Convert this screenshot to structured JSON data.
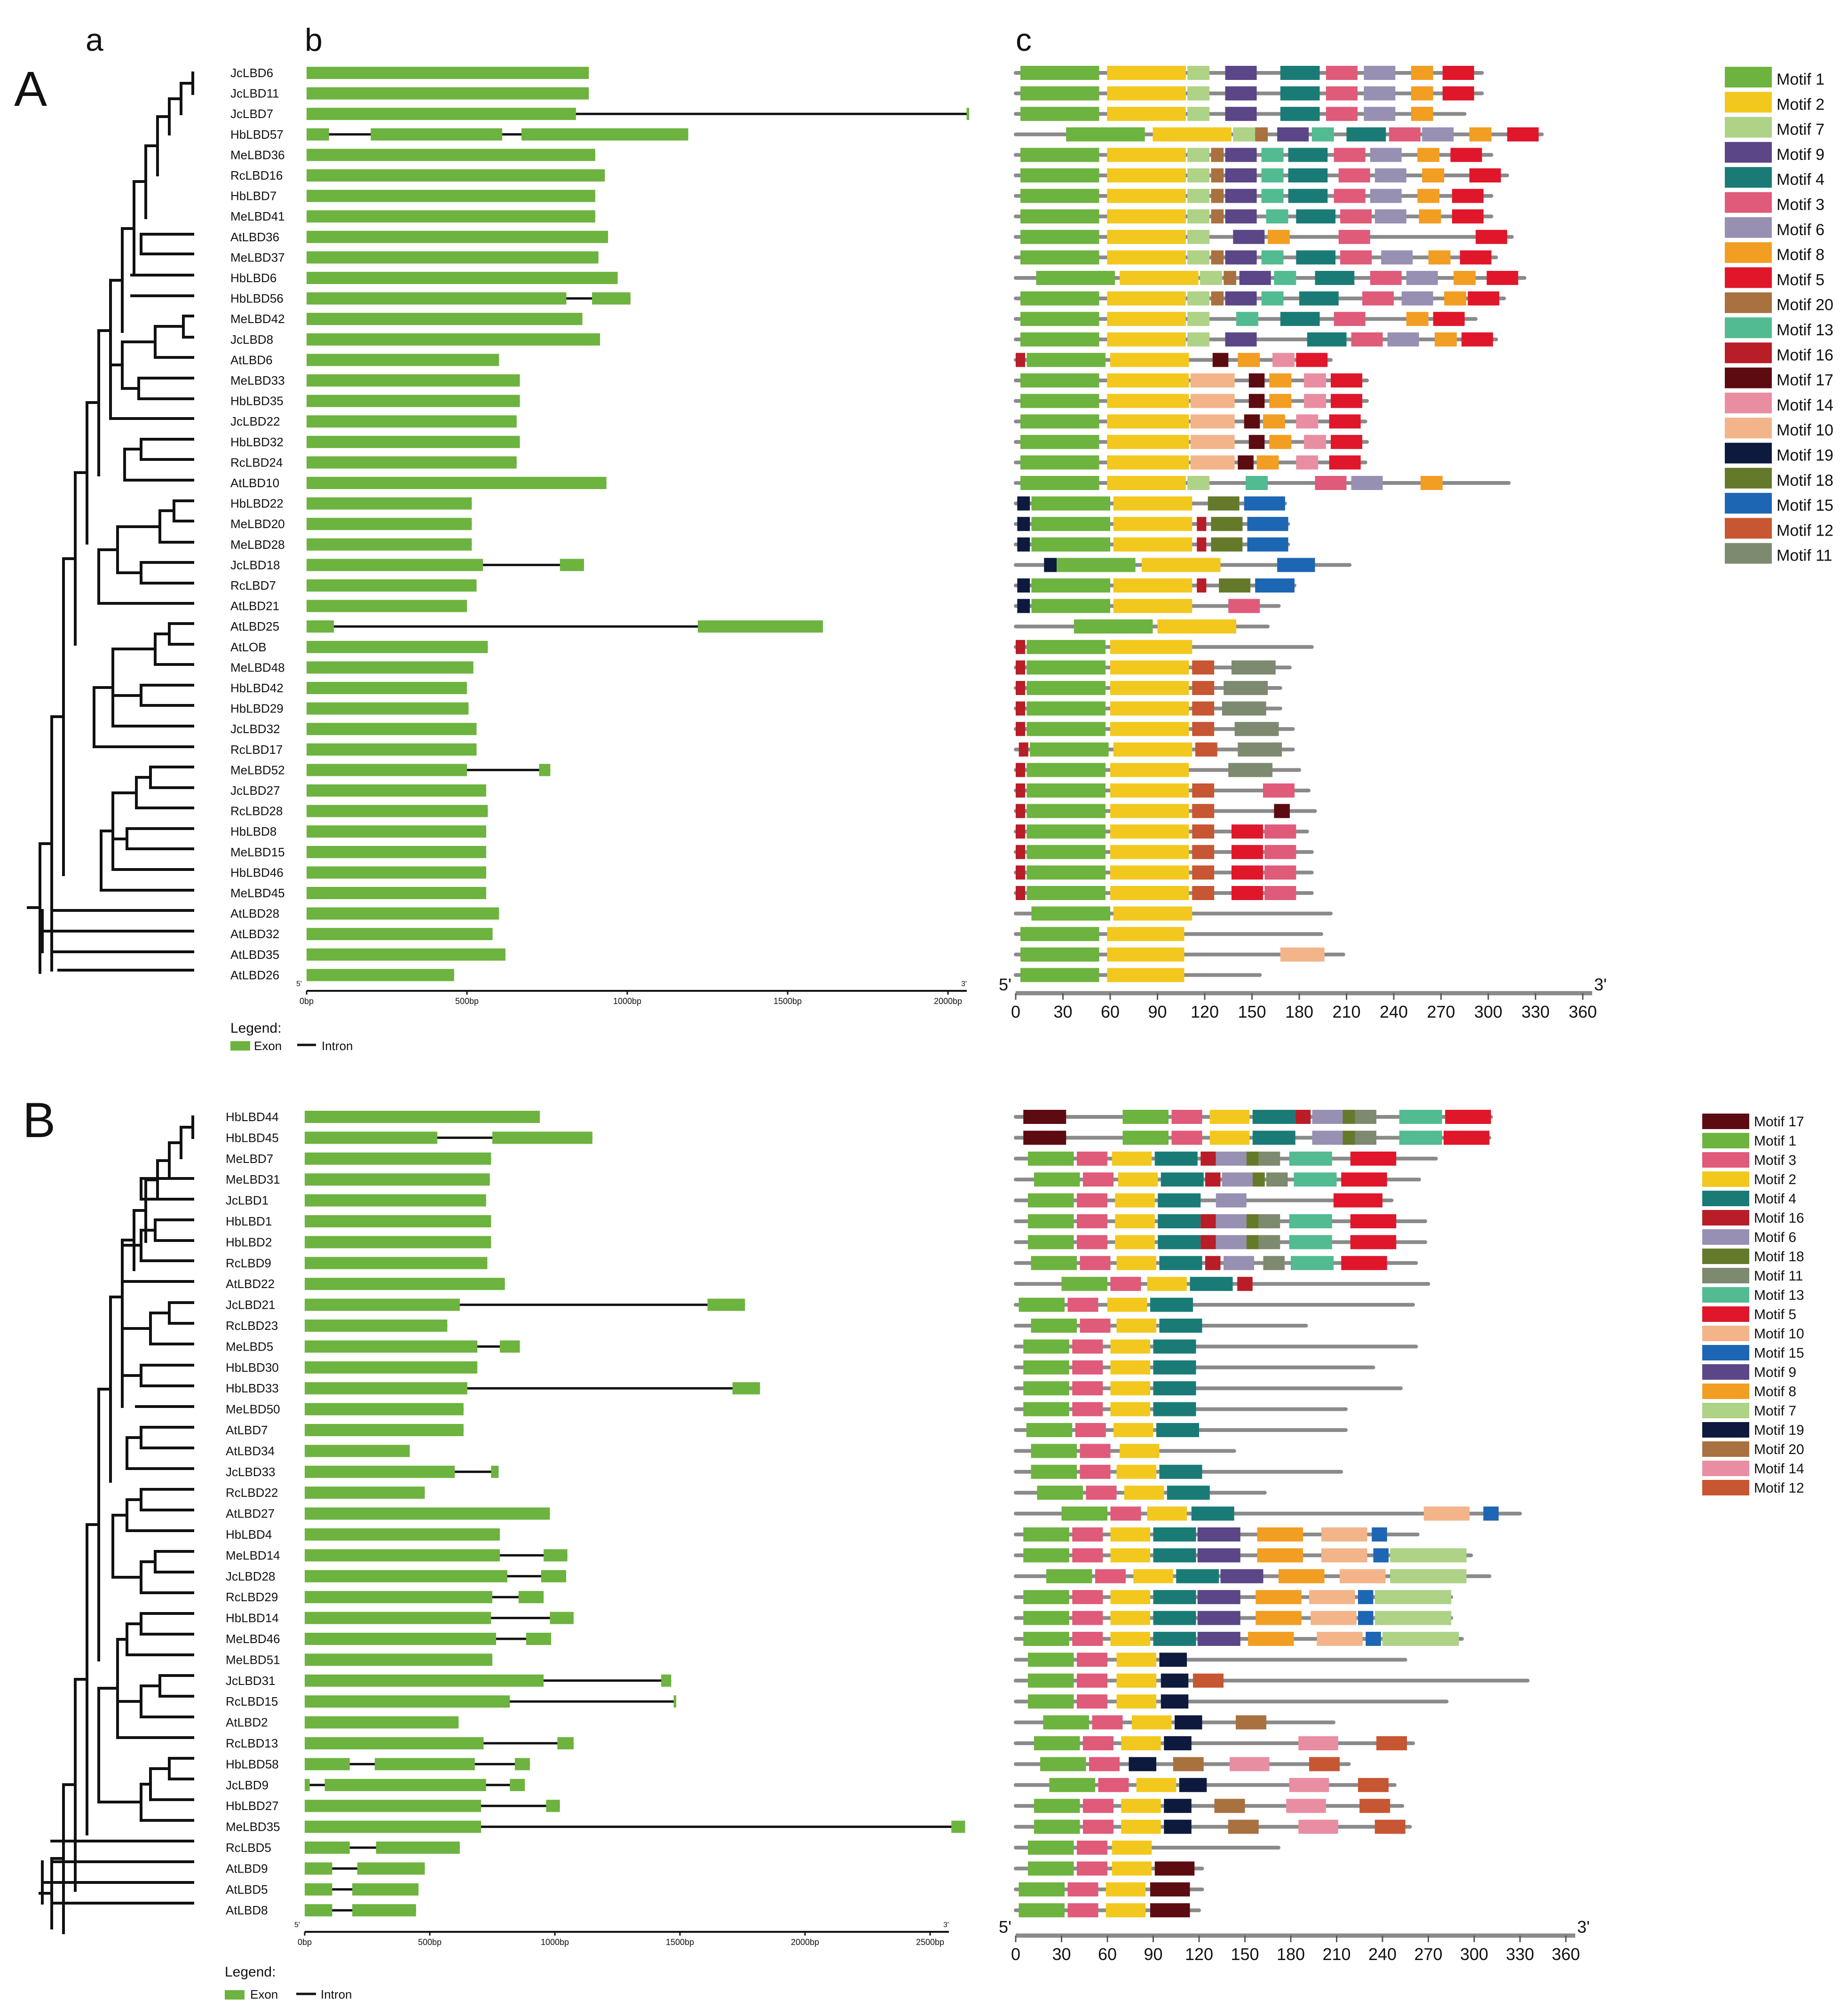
{
  "colors": {
    "exon": "#6db33f",
    "intron": "#111111",
    "line": "#8a8a8a",
    "tree": "#111111",
    "m1": "#6db33f",
    "m2": "#f2c81e",
    "m3": "#e05a7a",
    "m4": "#1a7b76",
    "m5": "#e0162b",
    "m6": "#9890b3",
    "m7": "#aed286",
    "m8": "#f29e22",
    "m9": "#5b4687",
    "m10": "#f3b48a",
    "m11": "#7d8a70",
    "m12": "#c75632",
    "m13": "#52bb91",
    "m14": "#e98ea2",
    "m15": "#1d66b3",
    "m16": "#b91d27",
    "m17": "#5c0b11",
    "m18": "#647a2a",
    "m19": "#0d1a3e",
    "m20": "#a9713f"
  },
  "panels": {
    "A": {
      "label": "A",
      "sub_a": "a",
      "sub_b": "b",
      "sub_c": "c",
      "genes": [
        "JcLBD6",
        "JcLBD11",
        "JcLBD7",
        "HbLBD57",
        "MeLBD36",
        "RcLBD16",
        "HbLBD7",
        "MeLBD41",
        "AtLBD36",
        "MeLBD37",
        "HbLBD6",
        "HbLBD56",
        "MeLBD42",
        "JcLBD8",
        "AtLBD6",
        "MeLBD33",
        "HbLBD35",
        "JcLBD22",
        "HbLBD32",
        "RcLBD24",
        "AtLBD10",
        "HbLBD22",
        "MeLBD20",
        "MeLBD28",
        "JcLBD18",
        "RcLBD7",
        "AtLBD21",
        "AtLBD25",
        "AtLOB",
        "MeLBD48",
        "HbLBD42",
        "HbLBD29",
        "JcLBD32",
        "RcLBD17",
        "MeLBD52",
        "JcLBD27",
        "RcLBD28",
        "HbLBD8",
        "MeLBD15",
        "HbLBD46",
        "MeLBD45",
        "AtLBD28",
        "AtLBD32",
        "AtLBD35",
        "AtLBD26"
      ],
      "gene_axis": {
        "ticks": [
          "0bp",
          "500bp",
          "1000bp",
          "1500bp",
          "2000bp"
        ],
        "end5": "5'",
        "end3": "3'"
      },
      "motif_axis": {
        "ticks": [
          "0",
          "30",
          "60",
          "90",
          "120",
          "150",
          "180",
          "210",
          "240",
          "270",
          "300",
          "330",
          "360"
        ],
        "end5": "5'",
        "end3": "3'"
      },
      "legend_title": "Legend:",
      "legend_exon": "Exon",
      "legend_intron": "Intron",
      "motif_legend": [
        {
          "label": "Motif 1",
          "key": "m1"
        },
        {
          "label": "Motif 2",
          "key": "m2"
        },
        {
          "label": "Motif 7",
          "key": "m7"
        },
        {
          "label": "Motif 9",
          "key": "m9"
        },
        {
          "label": "Motif 4",
          "key": "m4"
        },
        {
          "label": "Motif 3",
          "key": "m3"
        },
        {
          "label": "Motif 6",
          "key": "m6"
        },
        {
          "label": "Motif 8",
          "key": "m8"
        },
        {
          "label": "Motif 5",
          "key": "m5"
        },
        {
          "label": "Motif 20",
          "key": "m20"
        },
        {
          "label": "Motif 13",
          "key": "m13"
        },
        {
          "label": "Motif 16",
          "key": "m16"
        },
        {
          "label": "Motif 17",
          "key": "m17"
        },
        {
          "label": "Motif 14",
          "key": "m14"
        },
        {
          "label": "Motif 10",
          "key": "m10"
        },
        {
          "label": "Motif 19",
          "key": "m19"
        },
        {
          "label": "Motif 18",
          "key": "m18"
        },
        {
          "label": "Motif 15",
          "key": "m15"
        },
        {
          "label": "Motif 12",
          "key": "m12"
        },
        {
          "label": "Motif 11",
          "key": "m11"
        }
      ]
    },
    "B": {
      "label": "B",
      "genes": [
        "HbLBD44",
        "HbLBD45",
        "MeLBD7",
        "MeLBD31",
        "JcLBD1",
        "HbLBD1",
        "HbLBD2",
        "RcLBD9",
        "AtLBD22",
        "JcLBD21",
        "RcLBD23",
        "MeLBD5",
        "HbLBD30",
        "HbLBD33",
        "MeLBD50",
        "AtLBD7",
        "AtLBD34",
        "JcLBD33",
        "RcLBD22",
        "AtLBD27",
        "HbLBD4",
        "MeLBD14",
        "JcLBD28",
        "RcLBD29",
        "HbLBD14",
        "MeLBD46",
        "MeLBD51",
        "JcLBD31",
        "RcLBD15",
        "AtLBD2",
        "RcLBD13",
        "HbLBD58",
        "JcLBD9",
        "HbLBD27",
        "MeLBD35",
        "RcLBD5",
        "AtLBD9",
        "AtLBD5",
        "AtLBD8"
      ],
      "gene_axis": {
        "ticks": [
          "0bp",
          "500bp",
          "1000bp",
          "1500bp",
          "2000bp",
          "2500bp"
        ],
        "end5": "5'",
        "end3": "3'"
      },
      "motif_axis": {
        "ticks": [
          "0",
          "30",
          "60",
          "90",
          "120",
          "150",
          "180",
          "210",
          "240",
          "270",
          "300",
          "330",
          "360"
        ],
        "end5": "5'",
        "end3": "3'"
      },
      "legend_title": "Legend:",
      "legend_exon": "Exon",
      "legend_intron": "Intron",
      "motif_legend": [
        {
          "label": "Motif 17",
          "key": "m17"
        },
        {
          "label": "Motif 1",
          "key": "m1"
        },
        {
          "label": "Motif 3",
          "key": "m3"
        },
        {
          "label": "Motif 2",
          "key": "m2"
        },
        {
          "label": "Motif 4",
          "key": "m4"
        },
        {
          "label": "Motif 16",
          "key": "m16"
        },
        {
          "label": "Motif 6",
          "key": "m6"
        },
        {
          "label": "Motif 18",
          "key": "m18"
        },
        {
          "label": "Motif 11",
          "key": "m11"
        },
        {
          "label": "Motif 13",
          "key": "m13"
        },
        {
          "label": "Motif 5",
          "key": "m5"
        },
        {
          "label": "Motif 10",
          "key": "m10"
        },
        {
          "label": "Motif 15",
          "key": "m15"
        },
        {
          "label": "Motif 9",
          "key": "m9"
        },
        {
          "label": "Motif 8",
          "key": "m8"
        },
        {
          "label": "Motif 7",
          "key": "m7"
        },
        {
          "label": "Motif 19",
          "key": "m19"
        },
        {
          "label": "Motif 20",
          "key": "m20"
        },
        {
          "label": "Motif 14",
          "key": "m14"
        },
        {
          "label": "Motif 12",
          "key": "m12"
        }
      ]
    }
  }
}
